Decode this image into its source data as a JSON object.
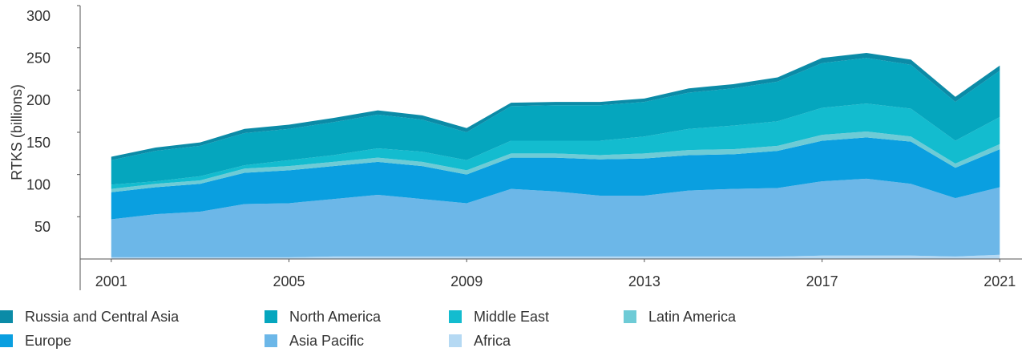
{
  "chart_data": {
    "type": "stacked_area",
    "y_label": "RTKS (billions)",
    "x": [
      2001,
      2002,
      2003,
      2004,
      2005,
      2006,
      2007,
      2008,
      2009,
      2010,
      2011,
      2012,
      2013,
      2014,
      2015,
      2016,
      2017,
      2018,
      2019,
      2020,
      2021
    ],
    "xlim": [
      2000.3,
      2021.5
    ],
    "xticks": [
      2001,
      2005,
      2009,
      2013,
      2017,
      2021
    ],
    "ylim": [
      0,
      300
    ],
    "yticks": [
      50,
      100,
      150,
      200,
      250,
      300
    ],
    "series": [
      {
        "name": "Africa",
        "color": "#b5d9f3",
        "values": [
          2,
          2,
          2,
          2,
          2,
          3,
          3,
          3,
          3,
          3,
          3,
          3,
          3,
          3,
          3,
          3,
          4,
          4,
          4,
          3,
          5
        ]
      },
      {
        "name": "Asia Pacific",
        "color": "#6cb7e8",
        "values": [
          45,
          51,
          54,
          63,
          64,
          68,
          73,
          68,
          63,
          80,
          77,
          72,
          72,
          78,
          80,
          81,
          88,
          91,
          85,
          69,
          80
        ]
      },
      {
        "name": "Europe",
        "color": "#0a9fe0",
        "values": [
          32,
          32,
          33,
          37,
          39,
          39,
          39,
          39,
          34,
          37,
          40,
          43,
          44,
          42,
          41,
          44,
          48,
          49,
          50,
          36,
          45
        ]
      },
      {
        "name": "Latin America",
        "color": "#6ecbd6",
        "values": [
          4,
          4,
          4,
          5,
          5,
          5,
          5,
          5,
          5,
          5,
          5,
          5,
          6,
          6,
          6,
          6,
          7,
          7,
          6,
          5,
          6
        ]
      },
      {
        "name": "Middle East",
        "color": "#13bccf",
        "values": [
          5,
          3,
          5,
          4,
          7,
          8,
          11,
          12,
          12,
          15,
          15,
          17,
          20,
          25,
          28,
          29,
          32,
          33,
          33,
          27,
          32
        ]
      },
      {
        "name": "North America",
        "color": "#05a6be",
        "values": [
          29,
          36,
          36,
          38,
          37,
          39,
          40,
          38,
          33,
          41,
          42,
          42,
          41,
          43,
          44,
          47,
          53,
          54,
          52,
          46,
          55
        ]
      },
      {
        "name": "Russia and Central Asia",
        "color": "#0b8ba7",
        "values": [
          4,
          4,
          4,
          5,
          5,
          5,
          5,
          5,
          5,
          4,
          4,
          4,
          4,
          5,
          5,
          5,
          6,
          6,
          6,
          6,
          6
        ]
      }
    ]
  }
}
